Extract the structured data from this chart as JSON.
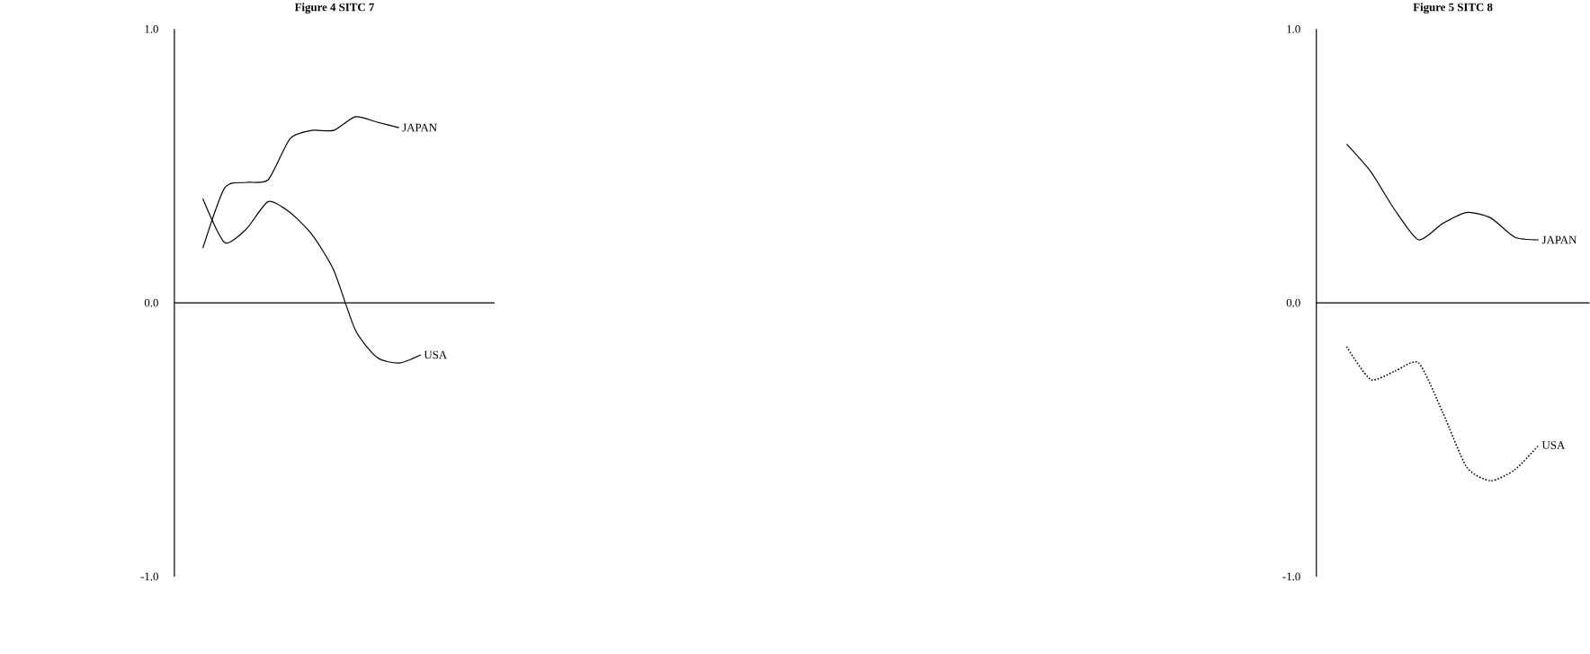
{
  "chart_data": [
    {
      "type": "line",
      "title": "**Figure 4    SITC 7**",
      "categories": [
        null,
        null,
        null,
        null,
        null,
        null,
        null,
        null,
        null,
        null,
        null
      ],
      "ylim": [
        -1,
        1
      ],
      "yticks": [
        {
          "value": -1,
          "label": "-1.0"
        },
        {
          "value": 0,
          "label": "0.0"
        },
        {
          "value": 1,
          "label": "1.0"
        }
      ],
      "tick_labels": "y",
      "series": [
        {
          "name": "JAPAN",
          "color": "#000000",
          "line_style": "solid",
          "values": [
            0.2,
            0.42,
            0.44,
            0.45,
            0.6,
            0.63,
            0.63,
            0.68,
            0.66,
            0.64,
            null
          ]
        },
        {
          "name": "USA",
          "color": "#000000",
          "line_style": "solid",
          "values": [
            0.38,
            0.22,
            0.27,
            0.37,
            0.33,
            0.25,
            0.12,
            -0.1,
            -0.2,
            -0.22,
            -0.19
          ]
        }
      ]
    },
    {
      "type": "line",
      "title": "**Figure 5    SITC 8**",
      "categories": [
        null,
        null,
        null,
        null,
        null,
        null,
        null,
        null,
        null
      ],
      "ylim": [
        -1,
        1
      ],
      "yticks": [
        {
          "value": -1,
          "label": "-1.0"
        },
        {
          "value": 0,
          "label": "0.0"
        },
        {
          "value": 1,
          "label": "1.0"
        }
      ],
      "tick_labels": "y",
      "series": [
        {
          "name": "JAPAN",
          "color": "#000000",
          "line_style": "solid",
          "values": [
            0.58,
            0.48,
            0.34,
            0.23,
            0.29,
            0.33,
            0.31,
            0.24,
            0.23
          ]
        },
        {
          "name": "USA",
          "color": "#000000",
          "line_style": "dotted",
          "values": [
            -0.16,
            -0.28,
            -0.25,
            -0.22,
            -0.4,
            -0.6,
            -0.65,
            -0.61,
            -0.52
          ]
        }
      ]
    }
  ]
}
